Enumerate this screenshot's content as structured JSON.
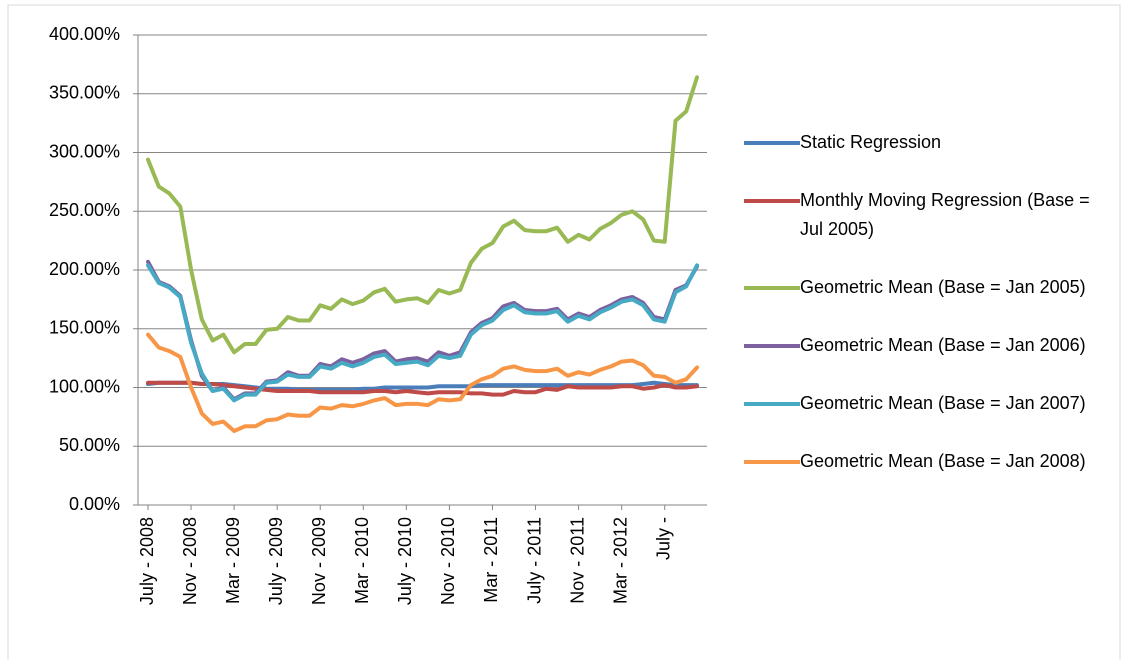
{
  "chart_data": {
    "type": "line",
    "categories": [
      "July - 2008",
      null,
      null,
      null,
      "Nov - 2008",
      null,
      null,
      null,
      "Mar - 2009",
      null,
      null,
      null,
      "July - 2009",
      null,
      null,
      null,
      "Nov - 2009",
      null,
      null,
      null,
      "Mar - 2010",
      null,
      null,
      null,
      "July - 2010",
      null,
      null,
      null,
      "Nov - 2010",
      null,
      null,
      null,
      "Mar - 2011",
      null,
      null,
      null,
      "July - 2011",
      null,
      null,
      null,
      "Nov - 2011",
      null,
      null,
      null,
      "Mar - 2012",
      null,
      null,
      null,
      "July -",
      null,
      null,
      null
    ],
    "ylim": [
      0,
      400
    ],
    "yticks": [
      {
        "value": 0,
        "label": "0.00%"
      },
      {
        "value": 50,
        "label": "50.00%"
      },
      {
        "value": 100,
        "label": "100.00%"
      },
      {
        "value": 150,
        "label": "150.00%"
      },
      {
        "value": 200,
        "label": "200.00%"
      },
      {
        "value": 250,
        "label": "250.00%"
      },
      {
        "value": 300,
        "label": "300.00%"
      },
      {
        "value": 350,
        "label": "350.00%"
      },
      {
        "value": 400,
        "label": "400.00%"
      }
    ],
    "grid": true,
    "legend": "right",
    "series": [
      {
        "name": "Static Regression",
        "color": "#4a7ebb",
        "values": [
          103,
          104,
          104,
          104,
          104,
          103,
          103,
          103,
          102,
          101,
          100,
          99,
          99,
          99,
          98,
          98,
          98,
          98,
          98,
          98,
          99,
          99,
          100,
          100,
          100,
          100,
          100,
          101,
          101,
          101,
          101,
          102,
          102,
          102,
          102,
          102,
          102,
          102,
          102,
          102,
          102,
          102,
          102,
          102,
          102,
          102,
          103,
          104,
          103,
          102,
          102,
          102
        ]
      },
      {
        "name": "Monthly Moving Regression (Base = Jul 2005)",
        "color": "#be4b48",
        "values": [
          104,
          104,
          104,
          104,
          104,
          103,
          103,
          102,
          101,
          100,
          99,
          98,
          97,
          97,
          97,
          97,
          96,
          96,
          96,
          96,
          96,
          97,
          97,
          96,
          97,
          96,
          95,
          96,
          96,
          96,
          95,
          95,
          94,
          94,
          97,
          96,
          96,
          99,
          98,
          101,
          100,
          100,
          100,
          100,
          101,
          101,
          99,
          100,
          102,
          100,
          100,
          101
        ]
      },
      {
        "name": "Geometric Mean (Base = Jan 2005)",
        "color": "#98b954",
        "values": [
          294,
          271,
          265,
          254,
          200,
          158,
          140,
          145,
          130,
          137,
          137,
          149,
          150,
          160,
          157,
          157,
          170,
          167,
          175,
          171,
          174,
          181,
          184,
          173,
          175,
          176,
          172,
          183,
          180,
          183,
          206,
          218,
          223,
          237,
          242,
          234,
          233,
          233,
          236,
          224,
          230,
          226,
          235,
          240,
          247,
          250,
          243,
          225,
          224,
          327,
          335,
          364
        ]
      },
      {
        "name": "Geometric Mean (Base = Jan 2006)",
        "color": "#7d60a0",
        "values": [
          207,
          190,
          186,
          178,
          140,
          110,
          97,
          100,
          90,
          95,
          95,
          105,
          106,
          113,
          110,
          110,
          120,
          118,
          124,
          121,
          124,
          129,
          131,
          122,
          124,
          125,
          122,
          130,
          127,
          130,
          147,
          155,
          159,
          169,
          172,
          166,
          165,
          165,
          167,
          158,
          163,
          160,
          166,
          170,
          175,
          177,
          172,
          160,
          158,
          183,
          187,
          203
        ]
      },
      {
        "name": "Geometric Mean (Base = Jan 2007)",
        "color": "#46aac5",
        "values": [
          204,
          189,
          185,
          177,
          138,
          112,
          97,
          99,
          89,
          94,
          94,
          104,
          105,
          111,
          109,
          109,
          118,
          116,
          121,
          118,
          121,
          126,
          128,
          120,
          121,
          122,
          119,
          127,
          125,
          127,
          145,
          153,
          157,
          166,
          170,
          164,
          163,
          163,
          165,
          156,
          161,
          158,
          164,
          168,
          173,
          175,
          170,
          158,
          156,
          181,
          186,
          204
        ]
      },
      {
        "name": "Geometric Mean (Base = Jan 2008)",
        "color": "#f79646",
        "values": [
          145,
          134,
          131,
          126,
          100,
          78,
          69,
          71,
          63,
          67,
          67,
          72,
          73,
          77,
          76,
          76,
          83,
          82,
          85,
          84,
          86,
          89,
          91,
          85,
          86,
          86,
          85,
          90,
          89,
          90,
          102,
          107,
          110,
          116,
          118,
          115,
          114,
          114,
          116,
          110,
          113,
          111,
          115,
          118,
          122,
          123,
          119,
          110,
          109,
          104,
          107,
          117
        ]
      }
    ]
  }
}
